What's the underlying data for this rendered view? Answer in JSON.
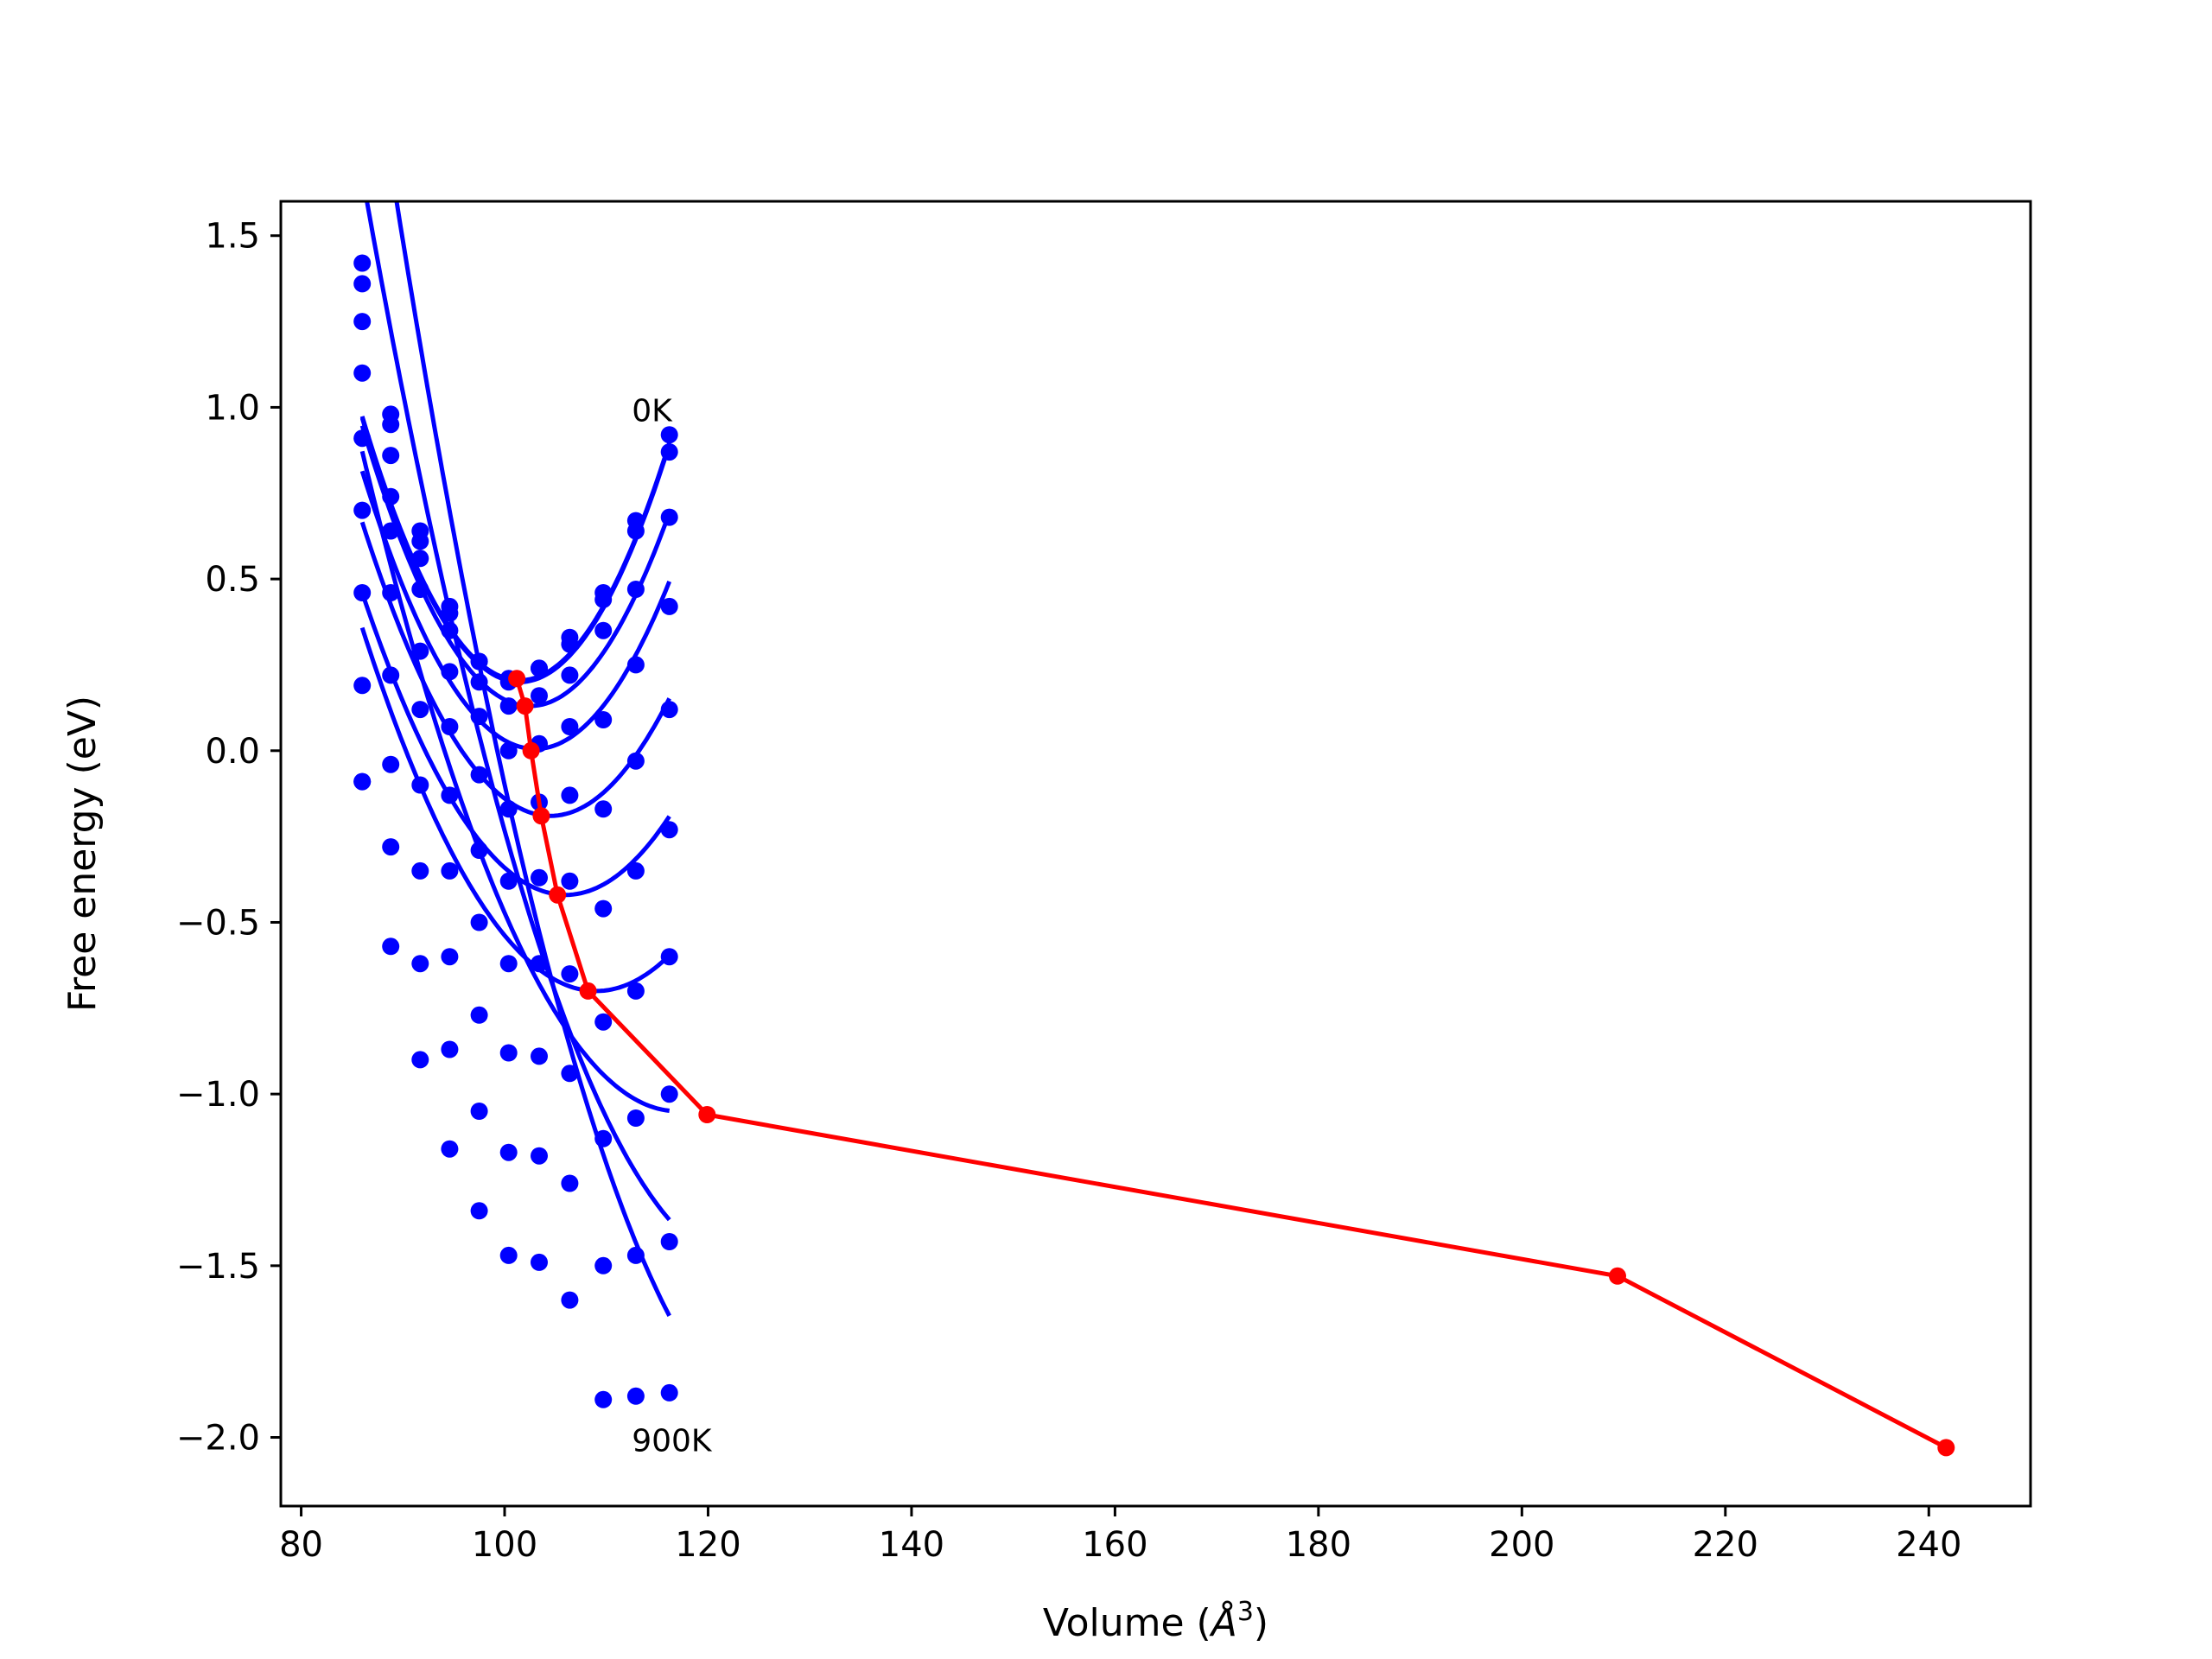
{
  "chart_data": {
    "type": "scatter",
    "title": "",
    "xlabel": "Volume (",
    "xlabel_symbol": "Å",
    "xlabel_exponent": "3",
    "xlabel_close": ")",
    "ylabel": "Free energy (eV)",
    "xlim": [
      78,
      250
    ],
    "ylim": [
      -2.2,
      1.6
    ],
    "x_ticks": [
      80,
      100,
      120,
      140,
      160,
      180,
      200,
      220,
      240
    ],
    "x_tick_labels": [
      "80",
      "100",
      "120",
      "140",
      "160",
      "180",
      "200",
      "220",
      "240"
    ],
    "y_ticks": [
      1.5,
      1.0,
      0.5,
      0.0,
      -0.5,
      -1.0,
      -1.5,
      -2.0
    ],
    "y_tick_labels": [
      "1.5",
      "1.0",
      "0.5",
      "0.0",
      "−0.5",
      "−1.0",
      "−1.5",
      "−2.0"
    ],
    "grid": false,
    "legend": "none",
    "colors": {
      "points": "#0000ff",
      "fit": "#0000ff",
      "minimum_path": "#ff0000",
      "frame": "#000000"
    },
    "volumes": [
      86.0,
      88.8,
      91.7,
      94.6,
      97.5,
      100.4,
      103.4,
      106.4,
      109.7,
      112.9,
      116.2
    ],
    "series": [
      {
        "label": "0K",
        "values": [
          1.42,
          0.98,
          0.64,
          0.42,
          0.26,
          0.21,
          0.24,
          0.33,
          0.46,
          0.67,
          0.92
        ]
      },
      {
        "values": [
          1.36,
          0.95,
          0.61,
          0.4,
          0.26,
          0.2,
          0.24,
          0.31,
          0.44,
          0.64,
          0.87
        ]
      },
      {
        "values": [
          1.25,
          0.86,
          0.56,
          0.35,
          0.2,
          0.13,
          0.16,
          0.22,
          0.35,
          0.47,
          0.68
        ]
      },
      {
        "values": [
          1.1,
          0.74,
          0.47,
          0.23,
          0.1,
          0.0,
          0.02,
          0.07,
          0.09,
          0.25,
          0.42
        ]
      },
      {
        "values": [
          0.91,
          0.64,
          0.29,
          0.07,
          -0.07,
          -0.17,
          -0.15,
          -0.13,
          -0.17,
          -0.03,
          0.12
        ]
      },
      {
        "values": [
          0.7,
          0.46,
          0.12,
          -0.13,
          -0.29,
          -0.38,
          -0.37,
          -0.38,
          -0.46,
          -0.35,
          -0.23
        ]
      },
      {
        "values": [
          0.46,
          0.22,
          -0.1,
          -0.35,
          -0.5,
          -0.62,
          -0.62,
          -0.65,
          -0.79,
          -0.7,
          -0.6
        ]
      },
      {
        "values": [
          0.19,
          -0.04,
          -0.35,
          -0.6,
          -0.77,
          -0.88,
          -0.89,
          -0.94,
          -1.13,
          -1.07,
          -1.0
        ]
      },
      {
        "values": [
          -0.09,
          -0.28,
          -0.62,
          -0.87,
          -1.05,
          -1.17,
          -1.18,
          -1.26,
          -1.5,
          -1.47,
          -1.43
        ]
      },
      {
        "label": "900K",
        "values": [
          -0.09,
          -0.57,
          -0.9,
          -1.16,
          -1.34,
          -1.47,
          -1.49,
          -1.6,
          -1.89,
          -1.88,
          -1.87
        ]
      }
    ],
    "fit_curves": [
      {
        "min_volume": 101.5,
        "min_energy": 0.205,
        "k": 0.0032
      },
      {
        "min_volume": 101.5,
        "min_energy": 0.2,
        "k": 0.0032
      },
      {
        "min_volume": 102.5,
        "min_energy": 0.13,
        "k": 0.003
      },
      {
        "min_volume": 103.0,
        "min_energy": 0.005,
        "k": 0.0028
      },
      {
        "min_volume": 104.5,
        "min_energy": -0.19,
        "k": 0.0025
      },
      {
        "min_volume": 106.0,
        "min_energy": -0.42,
        "k": 0.0022
      },
      {
        "min_volume": 109.0,
        "min_energy": -0.7,
        "k": 0.002
      },
      {
        "min_volume": 117.0,
        "min_energy": -1.05,
        "k": 0.002
      },
      {
        "min_volume": 124.0,
        "min_energy": -1.5,
        "k": 0.0022
      },
      {
        "min_volume": 128.0,
        "min_energy": -1.98,
        "k": 0.0024
      }
    ],
    "minimum_path": {
      "x": [
        101.2,
        102.0,
        102.6,
        103.6,
        105.2,
        108.2,
        119.9,
        209.4,
        241.7
      ],
      "y": [
        0.21,
        0.13,
        0.0,
        -0.19,
        -0.42,
        -0.7,
        -1.06,
        -1.53,
        -2.03
      ]
    },
    "annotations": [
      {
        "text": "0K",
        "x": 112.5,
        "y": 0.96
      },
      {
        "text": "900K",
        "x": 112.5,
        "y": -2.04
      }
    ]
  }
}
